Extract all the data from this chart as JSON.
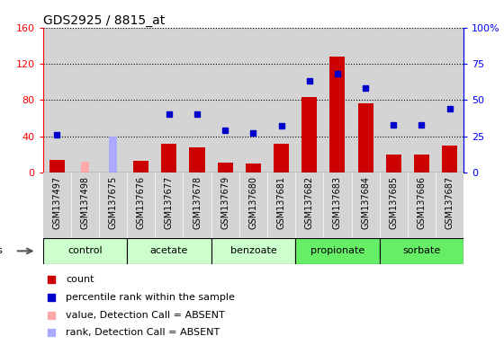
{
  "title": "GDS2925 / 8815_at",
  "samples": [
    "GSM137497",
    "GSM137498",
    "GSM137675",
    "GSM137676",
    "GSM137677",
    "GSM137678",
    "GSM137679",
    "GSM137680",
    "GSM137681",
    "GSM137682",
    "GSM137683",
    "GSM137684",
    "GSM137685",
    "GSM137686",
    "GSM137687"
  ],
  "count_values": [
    14,
    0,
    0,
    13,
    32,
    28,
    11,
    10,
    32,
    83,
    128,
    76,
    20,
    20,
    30
  ],
  "count_absent": [
    false,
    true,
    true,
    false,
    false,
    false,
    false,
    false,
    false,
    false,
    false,
    false,
    false,
    false,
    false
  ],
  "percentile_values": [
    26,
    0,
    0,
    0,
    40,
    40,
    29,
    27,
    32,
    63,
    68,
    58,
    33,
    33,
    44
  ],
  "value_absent_vals": [
    0,
    12,
    14,
    0,
    0,
    0,
    0,
    0,
    0,
    0,
    0,
    0,
    0,
    0,
    0
  ],
  "rank_absent_vals": [
    0,
    0,
    25,
    0,
    0,
    0,
    0,
    0,
    0,
    0,
    0,
    0,
    0,
    0,
    0
  ],
  "groups": [
    {
      "name": "control",
      "start": 0,
      "end": 2,
      "color": "#ccffcc"
    },
    {
      "name": "acetate",
      "start": 3,
      "end": 5,
      "color": "#ccffcc"
    },
    {
      "name": "benzoate",
      "start": 6,
      "end": 8,
      "color": "#ccffcc"
    },
    {
      "name": "propionate",
      "start": 9,
      "end": 11,
      "color": "#66ee66"
    },
    {
      "name": "sorbate",
      "start": 12,
      "end": 14,
      "color": "#66ee66"
    }
  ],
  "ylim_left": [
    0,
    160
  ],
  "ylim_right": [
    0,
    100
  ],
  "yticks_left": [
    0,
    40,
    80,
    120,
    160
  ],
  "yticks_right": [
    0,
    25,
    50,
    75,
    100
  ],
  "color_count": "#cc0000",
  "color_count_absent": "#ffaaaa",
  "color_percentile": "#0000cc",
  "color_rank_absent": "#aaaaff",
  "bg_color": "#d4d4d4",
  "title_fontsize": 10,
  "tick_fontsize": 7,
  "axis_fontsize": 8
}
